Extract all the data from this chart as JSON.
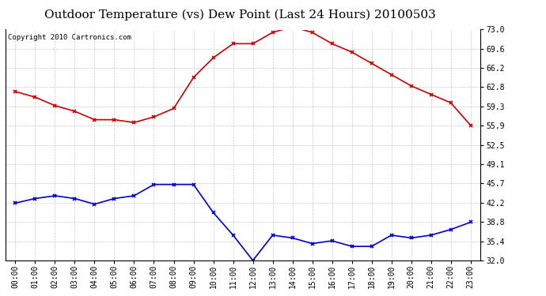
{
  "title": "Outdoor Temperature (vs) Dew Point (Last 24 Hours) 20100503",
  "copyright": "Copyright 2010 Cartronics.com",
  "hours": [
    "00:00",
    "01:00",
    "02:00",
    "03:00",
    "04:00",
    "05:00",
    "06:00",
    "07:00",
    "08:00",
    "09:00",
    "10:00",
    "11:00",
    "12:00",
    "13:00",
    "14:00",
    "15:00",
    "16:00",
    "17:00",
    "18:00",
    "19:00",
    "20:00",
    "21:00",
    "22:00",
    "23:00"
  ],
  "temp": [
    62.0,
    61.0,
    59.5,
    58.5,
    57.0,
    57.0,
    56.5,
    57.5,
    59.0,
    64.5,
    68.0,
    70.5,
    70.5,
    72.5,
    73.5,
    72.5,
    70.5,
    69.0,
    67.0,
    65.0,
    63.0,
    61.5,
    60.0,
    56.0
  ],
  "dew": [
    42.2,
    43.0,
    43.5,
    43.0,
    42.0,
    43.0,
    43.5,
    45.5,
    45.5,
    45.5,
    40.5,
    36.5,
    32.0,
    36.5,
    36.0,
    35.0,
    35.5,
    34.5,
    34.5,
    36.5,
    36.0,
    36.5,
    37.5,
    38.8
  ],
  "temp_color": "#cc0000",
  "dew_color": "#0000cc",
  "background_color": "#ffffff",
  "plot_bg_color": "#ffffff",
  "grid_color": "#bbbbbb",
  "ylim": [
    32.0,
    73.0
  ],
  "yticks": [
    32.0,
    35.4,
    38.8,
    42.2,
    45.7,
    49.1,
    52.5,
    55.9,
    59.3,
    62.8,
    66.2,
    69.6,
    73.0
  ],
  "title_fontsize": 11,
  "tick_fontsize": 7,
  "copyright_fontsize": 6.5,
  "line_width": 1.2,
  "marker_size": 3.5
}
